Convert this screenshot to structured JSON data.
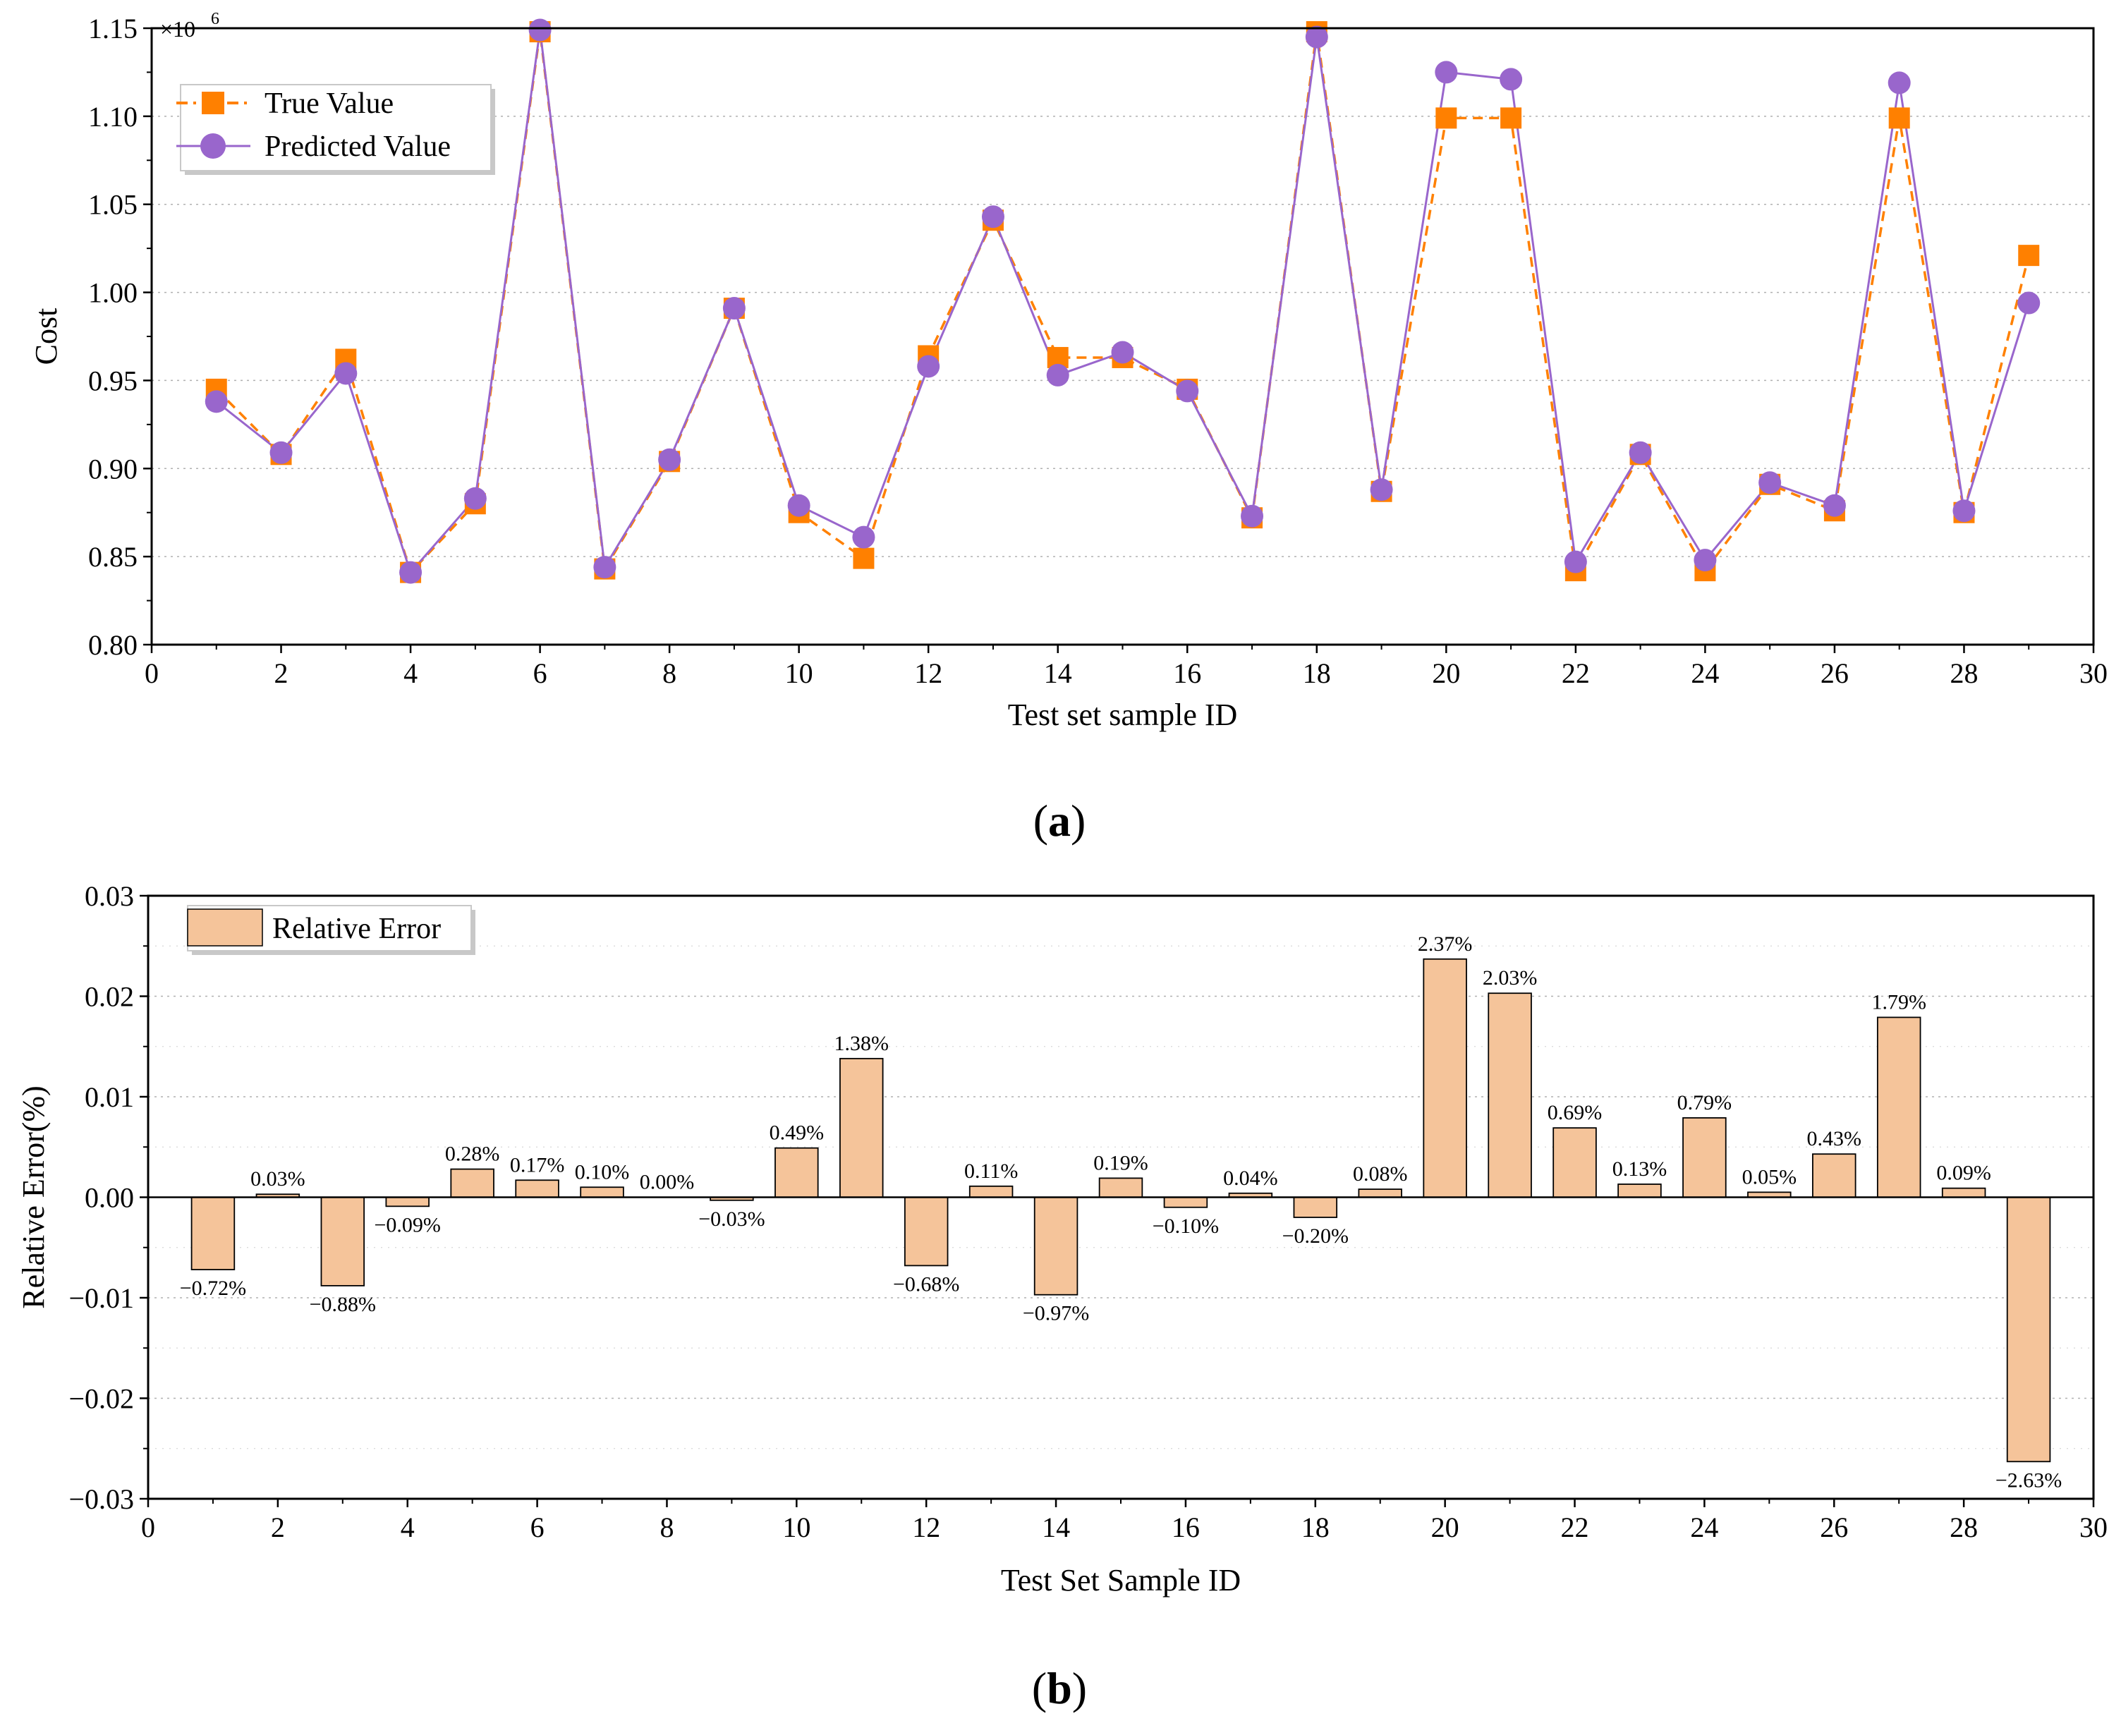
{
  "chart_data": [
    {
      "type": "line",
      "panel_label": "a",
      "xlabel": "Test set sample ID",
      "ylabel": "Cost",
      "y_multiplier": "×10",
      "y_multiplier_exp": "6",
      "xlim": [
        0,
        30
      ],
      "ylim": [
        0.8,
        1.15
      ],
      "x_ticks": [
        0,
        2,
        4,
        6,
        8,
        10,
        12,
        14,
        16,
        18,
        20,
        22,
        24,
        26,
        28,
        30
      ],
      "y_ticks": [
        "0.80",
        "0.85",
        "0.90",
        "0.95",
        "1.00",
        "1.05",
        "1.10",
        "1.15"
      ],
      "grid": "horizontal dotted",
      "legend_position": "top-left",
      "x": [
        1,
        2,
        3,
        4,
        5,
        6,
        7,
        8,
        9,
        10,
        11,
        12,
        13,
        14,
        15,
        16,
        17,
        18,
        19,
        20,
        21,
        22,
        23,
        24,
        25,
        26,
        27,
        28,
        29
      ],
      "series": [
        {
          "name": "True Value",
          "color": "#FF8000",
          "marker": "square",
          "style": "dashed",
          "values": [
            0.945,
            0.908,
            0.962,
            0.841,
            0.88,
            1.148,
            0.843,
            0.904,
            0.991,
            0.875,
            0.849,
            0.964,
            1.041,
            0.963,
            0.963,
            0.945,
            0.872,
            1.148,
            0.887,
            1.099,
            1.099,
            0.842,
            0.908,
            0.842,
            0.891,
            0.876,
            1.099,
            0.875,
            1.021
          ]
        },
        {
          "name": "Predicted Value",
          "color": "#9966CC",
          "marker": "circle",
          "style": "solid",
          "values": [
            0.938,
            0.909,
            0.954,
            0.841,
            0.883,
            1.149,
            0.844,
            0.905,
            0.991,
            0.879,
            0.861,
            0.958,
            1.043,
            0.953,
            0.966,
            0.944,
            0.873,
            1.145,
            0.888,
            1.125,
            1.121,
            0.847,
            0.909,
            0.848,
            0.892,
            0.879,
            1.119,
            0.876,
            0.994
          ]
        }
      ]
    },
    {
      "type": "bar",
      "panel_label": "b",
      "xlabel": "Test Set Sample ID",
      "ylabel": "Relative Error(%)",
      "xlim": [
        0,
        30
      ],
      "ylim": [
        -0.03,
        0.03
      ],
      "x_ticks": [
        0,
        2,
        4,
        6,
        8,
        10,
        12,
        14,
        16,
        18,
        20,
        22,
        24,
        26,
        28,
        30
      ],
      "y_ticks": [
        "−0.03",
        "−0.02",
        "−0.01",
        "0.00",
        "0.01",
        "0.02",
        "0.03"
      ],
      "grid": "horizontal dotted",
      "legend_position": "top-left",
      "series_name": "Relative Error",
      "color": "#F5C49A",
      "x": [
        1,
        2,
        3,
        4,
        5,
        6,
        7,
        8,
        9,
        10,
        11,
        12,
        13,
        14,
        15,
        16,
        17,
        18,
        19,
        20,
        21,
        22,
        23,
        24,
        25,
        26,
        27,
        28,
        29
      ],
      "values": [
        -0.0072,
        0.0003,
        -0.0088,
        -0.0009,
        0.0028,
        0.0017,
        0.001,
        0.0,
        -0.0003,
        0.0049,
        0.0138,
        -0.0068,
        0.0011,
        -0.0097,
        0.0019,
        -0.001,
        0.0004,
        -0.002,
        0.0008,
        0.0237,
        0.0203,
        0.0069,
        0.0013,
        0.0079,
        0.0005,
        0.0043,
        0.0179,
        0.0009,
        -0.0263
      ],
      "labels": [
        "−0.72%",
        "0.03%",
        "−0.88%",
        "−0.09%",
        "0.28%",
        "0.17%",
        "0.10%",
        "0.00%",
        "−0.03%",
        "0.49%",
        "1.38%",
        "−0.68%",
        "0.11%",
        "−0.97%",
        "0.19%",
        "−0.10%",
        "0.04%",
        "−0.20%",
        "0.08%",
        "2.37%",
        "2.03%",
        "0.69%",
        "0.13%",
        "0.79%",
        "0.05%",
        "0.43%",
        "1.79%",
        "0.09%",
        "−2.63%"
      ]
    }
  ]
}
